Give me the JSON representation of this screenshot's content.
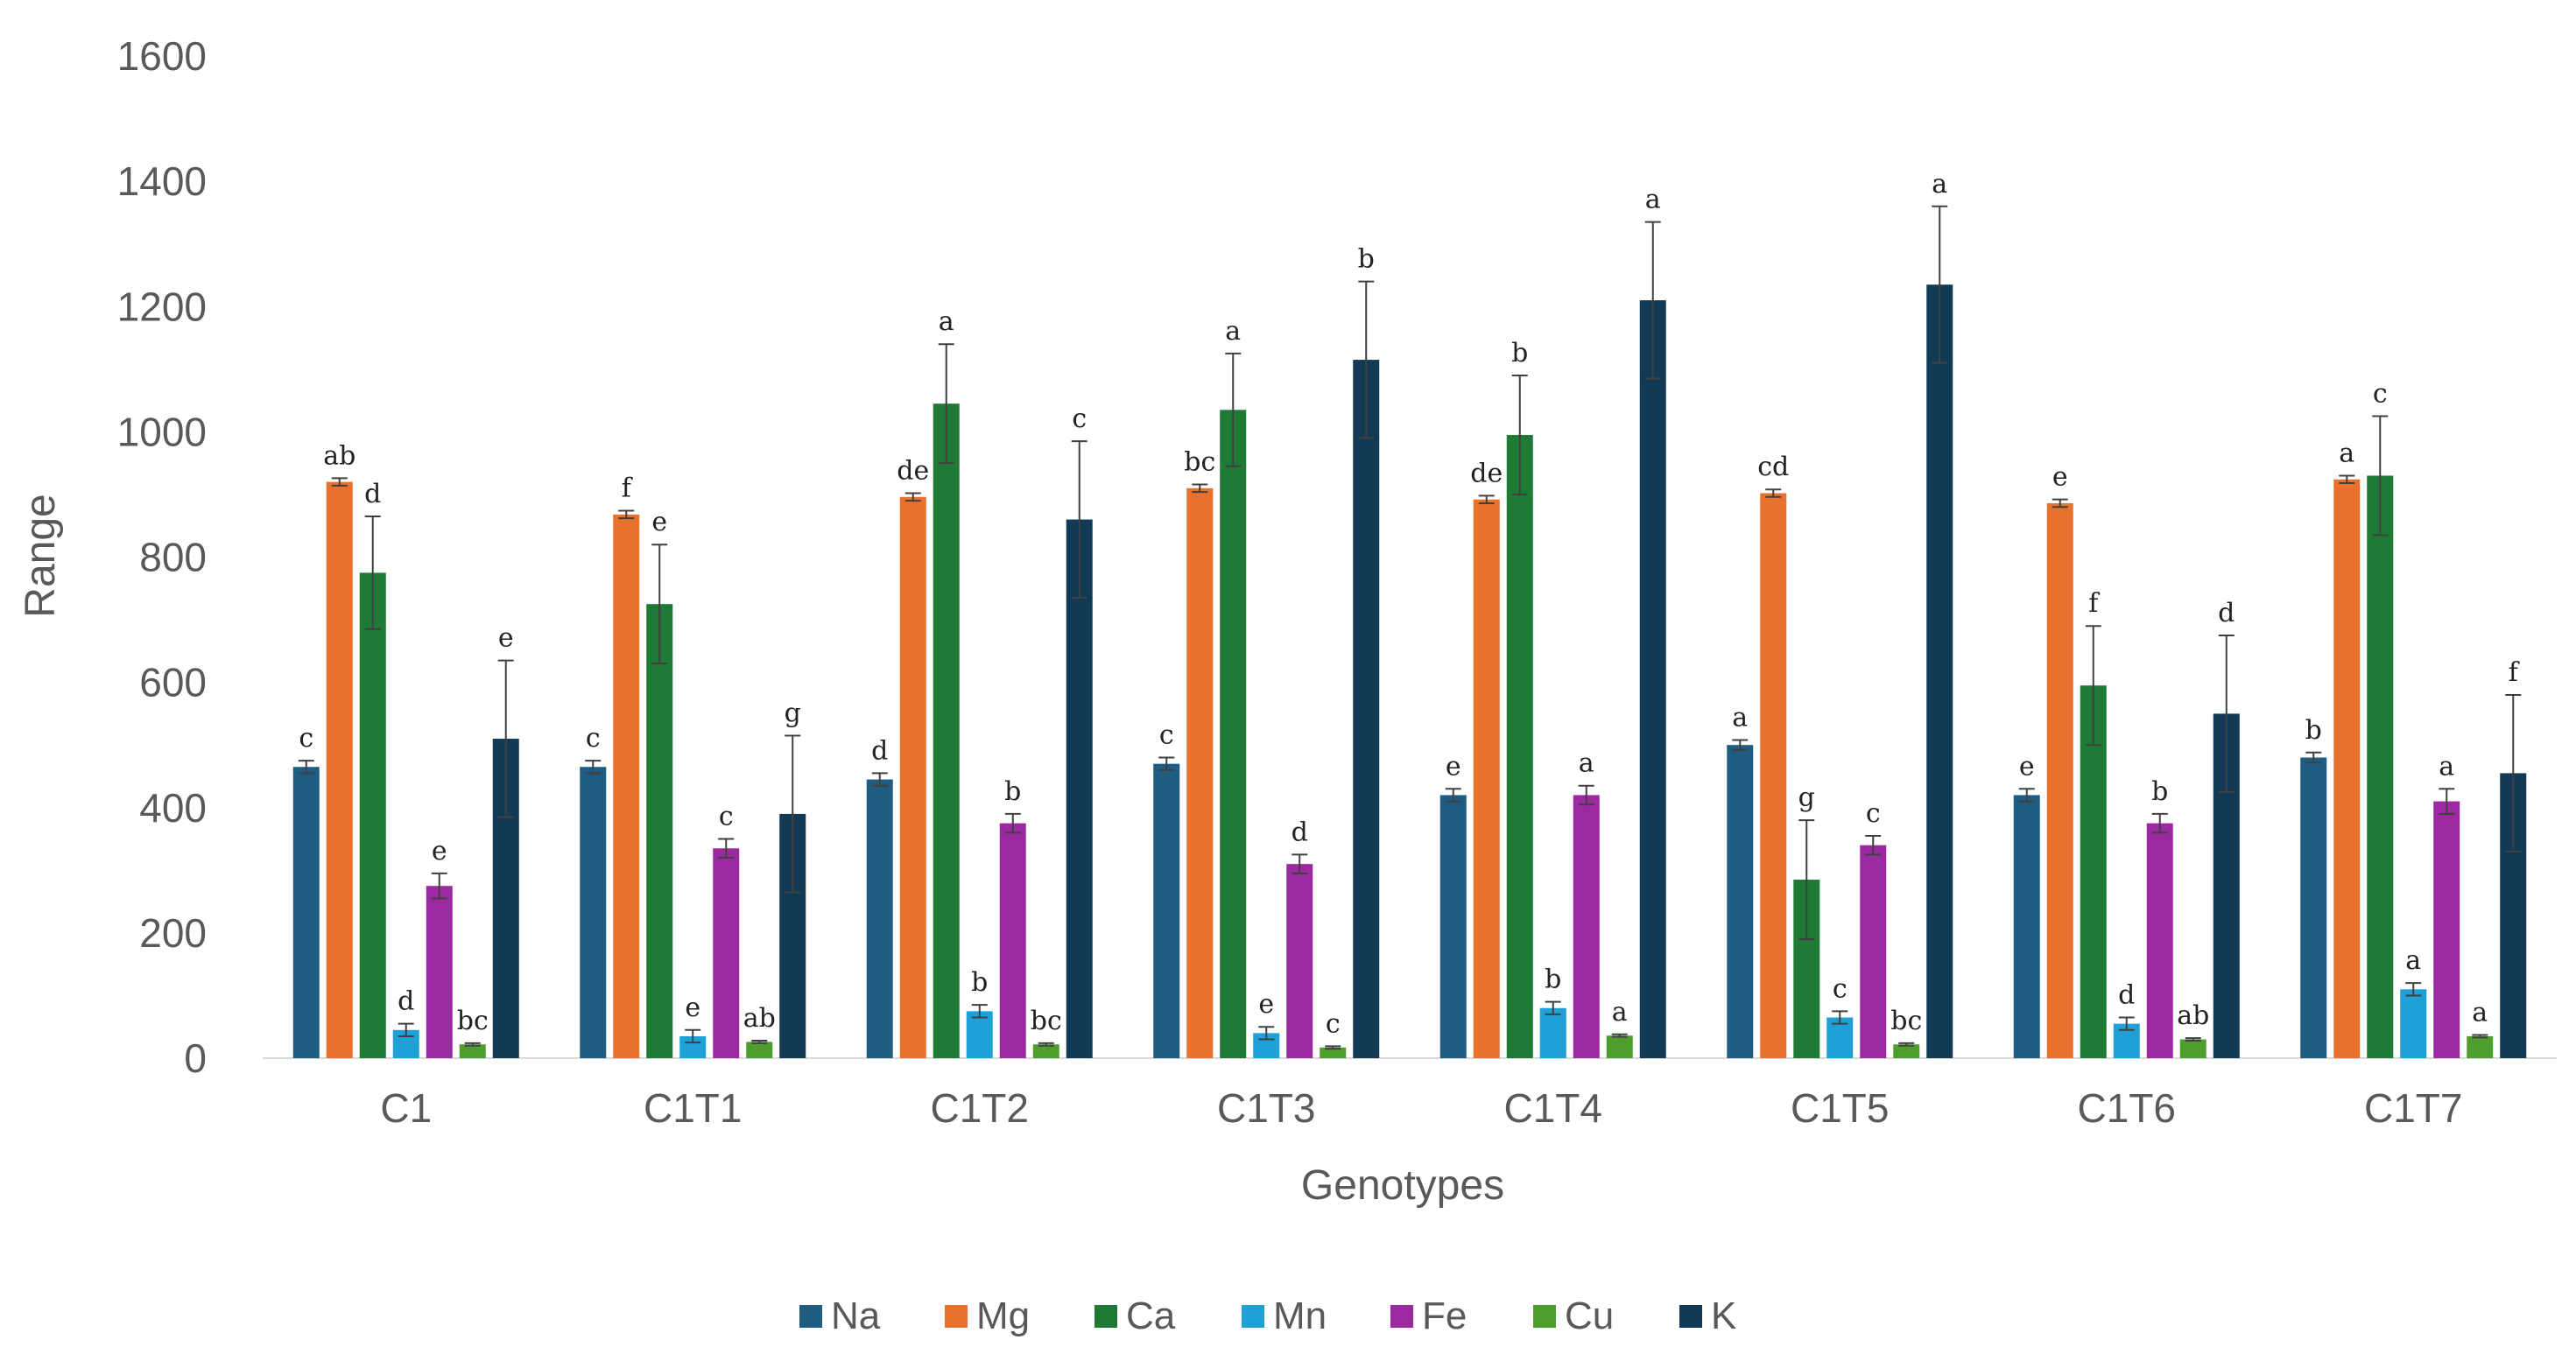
{
  "chart_data": {
    "type": "bar",
    "title": "",
    "xlabel": "Genotypes",
    "ylabel": "Range",
    "ylim": [
      0,
      1600
    ],
    "yticks": [
      "0",
      "200",
      "400",
      "600",
      "800",
      "1000",
      "1200",
      "1400",
      "1600"
    ],
    "grid": false,
    "legend_position": "bottom",
    "categories": [
      "C1",
      "C1T1",
      "C1T2",
      "C1T3",
      "C1T4",
      "C1T5",
      "C1T6",
      "C1T7"
    ],
    "series": [
      {
        "name": "Na",
        "color": "#1F5C82",
        "values": [
          465,
          465,
          445,
          470,
          420,
          500,
          420,
          480
        ],
        "errors": [
          10,
          10,
          10,
          10,
          10,
          8,
          10,
          8
        ],
        "labels": [
          "c",
          "c",
          "d",
          "c",
          "e",
          "a",
          "e",
          "b"
        ]
      },
      {
        "name": "Mg",
        "color": "#E8712D",
        "values": [
          920,
          868,
          896,
          910,
          892,
          902,
          886,
          924
        ],
        "errors": [
          6,
          6,
          6,
          6,
          6,
          6,
          6,
          6
        ],
        "labels": [
          "ab",
          "f",
          "de",
          "bc",
          "de",
          "cd",
          "e",
          "a"
        ]
      },
      {
        "name": "Ca",
        "color": "#1F7A35",
        "values": [
          775,
          725,
          1045,
          1035,
          995,
          285,
          595,
          930
        ],
        "errors": [
          90,
          95,
          95,
          90,
          95,
          95,
          95,
          95
        ],
        "labels": [
          "d",
          "e",
          "a",
          "a",
          "b",
          "g",
          "f",
          "c"
        ]
      },
      {
        "name": "Mn",
        "color": "#1FA1D8",
        "values": [
          45,
          35,
          75,
          40,
          80,
          65,
          55,
          110
        ],
        "errors": [
          10,
          10,
          10,
          10,
          10,
          10,
          10,
          10
        ],
        "labels": [
          "d",
          "e",
          "b",
          "e",
          "b",
          "c",
          "d",
          "a"
        ]
      },
      {
        "name": "Fe",
        "color": "#9B2AA0",
        "values": [
          275,
          335,
          375,
          310,
          420,
          340,
          375,
          410
        ],
        "errors": [
          20,
          15,
          15,
          15,
          15,
          15,
          15,
          20
        ],
        "labels": [
          "e",
          "c",
          "b",
          "d",
          "a",
          "c",
          "b",
          "a"
        ]
      },
      {
        "name": "Cu",
        "color": "#4E9E2E",
        "values": [
          22,
          26,
          22,
          17,
          36,
          22,
          30,
          35
        ],
        "errors": [
          2,
          2,
          2,
          2,
          2,
          2,
          2,
          2
        ],
        "labels": [
          "bc",
          "ab",
          "bc",
          "c",
          "a",
          "bc",
          "ab",
          "a"
        ]
      },
      {
        "name": "K",
        "color": "#123A55",
        "values": [
          510,
          390,
          860,
          1115,
          1210,
          1235,
          550,
          455
        ],
        "errors": [
          125,
          125,
          125,
          125,
          125,
          125,
          125,
          125
        ],
        "labels": [
          "e",
          "g",
          "c",
          "b",
          "a",
          "a",
          "d",
          "f"
        ]
      }
    ]
  }
}
